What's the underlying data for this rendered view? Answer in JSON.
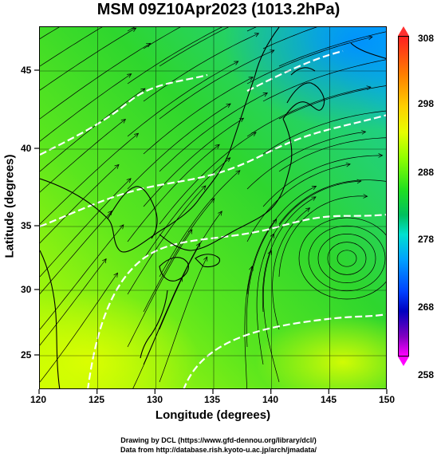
{
  "title": "MSM 09Z10Apr2023 (1013.2hPa)",
  "x_axis": {
    "label": "Longitude (degrees)",
    "ticks": [
      "120",
      "125",
      "130",
      "135",
      "140",
      "145",
      "150"
    ],
    "range": [
      120,
      150
    ]
  },
  "y_axis": {
    "label": "Latitude  (degrees)",
    "ticks": [
      "25",
      "30",
      "35",
      "40",
      "45"
    ],
    "range": [
      22.4,
      47.6
    ]
  },
  "colorbar": {
    "ticks": [
      "308",
      "298",
      "288",
      "278",
      "268",
      "258"
    ],
    "range": [
      258,
      308
    ]
  },
  "credits": {
    "line1": "Drawing by DCL (https://www.gfd-dennou.org/library/dcl/)",
    "line2": "Data from http://database.rish.kyoto-u.ac.jp/arch/jmadata/"
  },
  "colors": {
    "field_main": "#2ed62e",
    "field_warm": "#c8ff00",
    "field_cold": "#00b8ff",
    "coast": "#000000",
    "contour": "#ffffff"
  }
}
